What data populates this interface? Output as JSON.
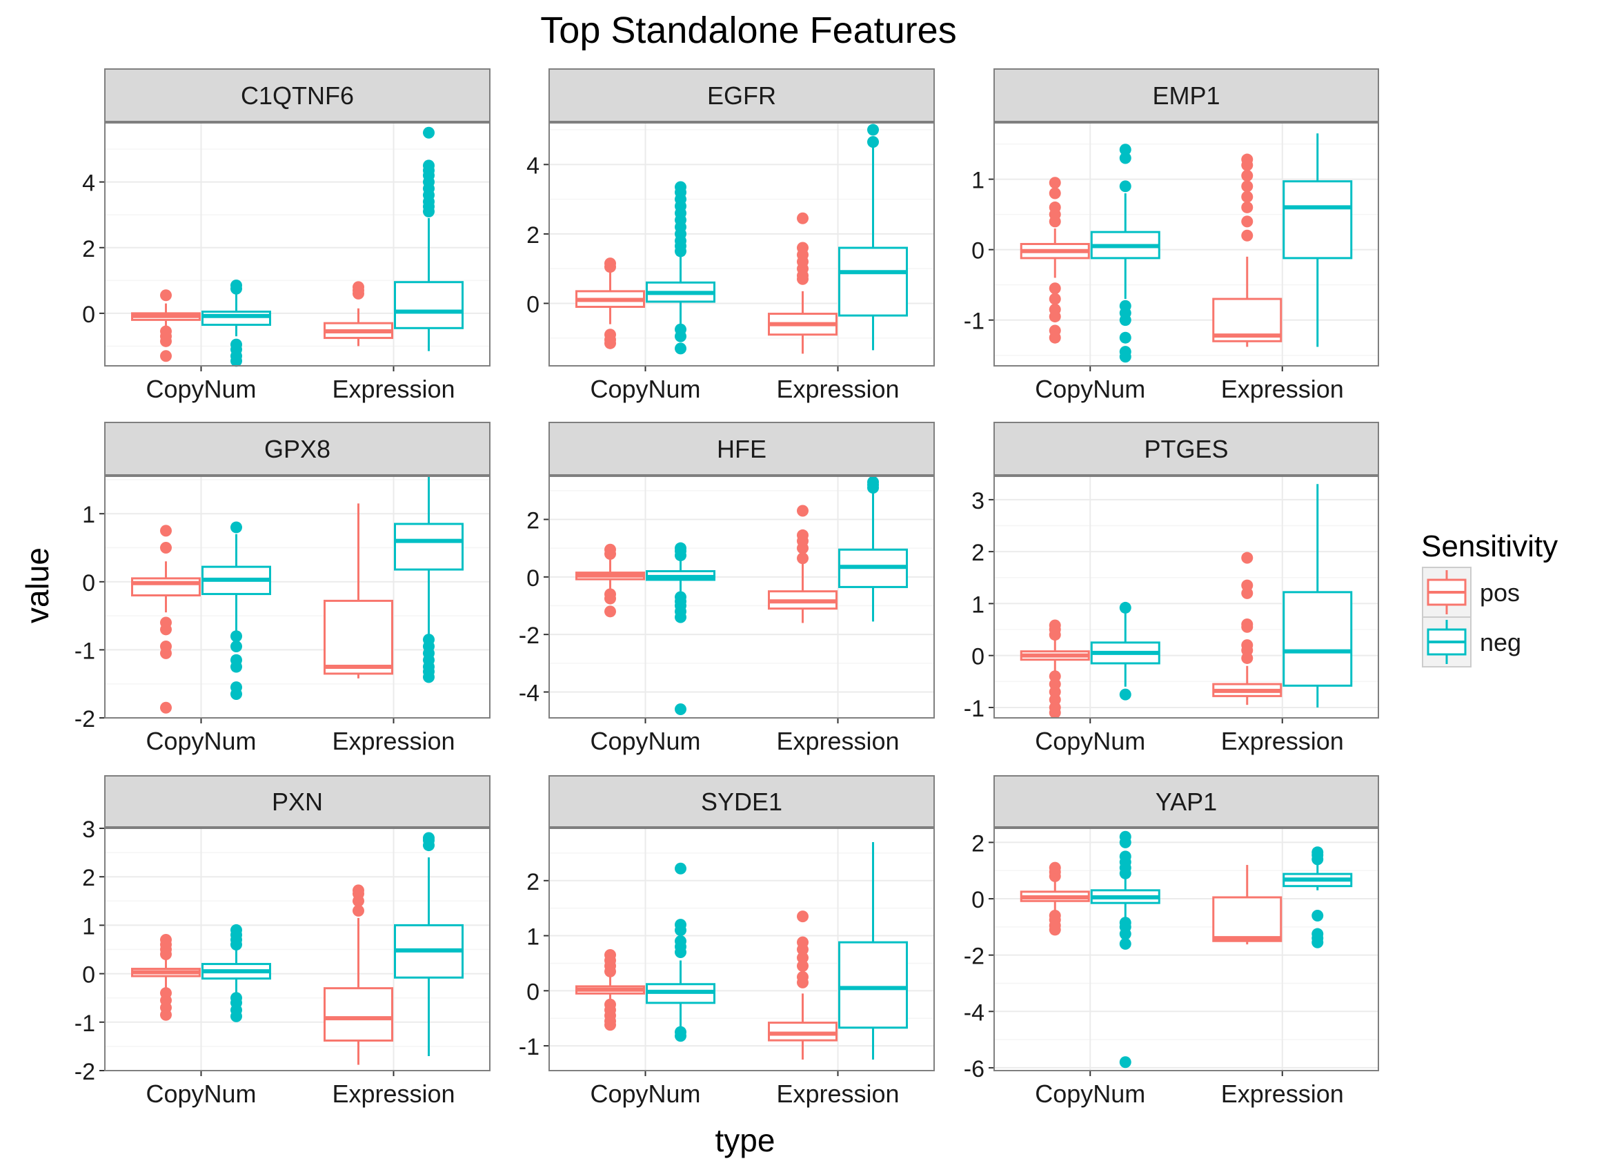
{
  "title": "Top Standalone Features",
  "xlabel": "type",
  "ylabel": "value",
  "colors": {
    "pos": "#F8766D",
    "neg": "#00BFC4",
    "strip_bg": "#D9D9D9",
    "grid_major": "#EBEBEB",
    "grid_minor": "#F5F5F5",
    "border": "#7F7F7F"
  },
  "legend": {
    "title": "Sensitivity",
    "placement": "right",
    "items": [
      {
        "key": "pos",
        "label": "pos"
      },
      {
        "key": "neg",
        "label": "neg"
      }
    ]
  },
  "chart_data": {
    "type": "boxplot",
    "facets_layout": "3x3",
    "categories": [
      "CopyNum",
      "Expression"
    ],
    "groups": [
      "pos",
      "neg"
    ],
    "panels": [
      {
        "name": "C1QTNF6",
        "ylim": [
          -1.6,
          5.8
        ],
        "yticks": [
          0,
          2,
          4
        ],
        "boxes": [
          {
            "category": "CopyNum",
            "group": "pos",
            "q1": -0.2,
            "median": -0.08,
            "q3": 0.0,
            "whisker_low": -0.45,
            "whisker_high": 0.3,
            "outliers": [
              0.55,
              -0.55,
              -0.7,
              -0.85,
              -1.3
            ]
          },
          {
            "category": "CopyNum",
            "group": "neg",
            "q1": -0.35,
            "median": -0.08,
            "q3": 0.05,
            "whisker_low": -0.7,
            "whisker_high": 0.6,
            "outliers": [
              0.75,
              0.85,
              -0.95,
              -1.1,
              -1.3,
              -1.45
            ]
          },
          {
            "category": "Expression",
            "group": "pos",
            "q1": -0.75,
            "median": -0.55,
            "q3": -0.3,
            "whisker_low": -1.0,
            "whisker_high": 0.15,
            "outliers": [
              0.6,
              0.7,
              0.8
            ]
          },
          {
            "category": "Expression",
            "group": "neg",
            "q1": -0.45,
            "median": 0.05,
            "q3": 0.95,
            "whisker_low": -1.15,
            "whisker_high": 2.9,
            "outliers": [
              3.1,
              3.25,
              3.4,
              3.6,
              3.8,
              4.0,
              4.2,
              4.35,
              4.5,
              5.5
            ]
          }
        ]
      },
      {
        "name": "EGFR",
        "ylim": [
          -1.8,
          5.2
        ],
        "yticks": [
          0,
          2,
          4
        ],
        "boxes": [
          {
            "category": "CopyNum",
            "group": "pos",
            "q1": -0.1,
            "median": 0.1,
            "q3": 0.35,
            "whisker_low": -0.6,
            "whisker_high": 0.9,
            "outliers": [
              1.05,
              1.15,
              -0.9,
              -1.05,
              -1.15
            ]
          },
          {
            "category": "CopyNum",
            "group": "neg",
            "q1": 0.05,
            "median": 0.3,
            "q3": 0.6,
            "whisker_low": -0.6,
            "whisker_high": 1.35,
            "outliers": [
              1.5,
              1.65,
              1.8,
              2.0,
              2.2,
              2.4,
              2.6,
              2.8,
              3.0,
              3.2,
              3.35,
              -0.75,
              -0.95,
              -1.3
            ]
          },
          {
            "category": "Expression",
            "group": "pos",
            "q1": -0.9,
            "median": -0.6,
            "q3": -0.3,
            "whisker_low": -1.45,
            "whisker_high": 0.35,
            "outliers": [
              0.7,
              0.8,
              1.0,
              1.2,
              1.4,
              1.6,
              2.45
            ]
          },
          {
            "category": "Expression",
            "group": "neg",
            "q1": -0.35,
            "median": 0.9,
            "q3": 1.6,
            "whisker_low": -1.35,
            "whisker_high": 4.55,
            "outliers": [
              4.65,
              5.0
            ]
          }
        ]
      },
      {
        "name": "EMP1",
        "ylim": [
          -1.65,
          1.8
        ],
        "yticks": [
          -1,
          0,
          1
        ],
        "boxes": [
          {
            "category": "CopyNum",
            "group": "pos",
            "q1": -0.12,
            "median": -0.02,
            "q3": 0.08,
            "whisker_low": -0.4,
            "whisker_high": 0.3,
            "outliers": [
              0.4,
              0.5,
              0.6,
              0.8,
              0.95,
              -0.55,
              -0.7,
              -0.85,
              -0.95,
              -1.15,
              -1.25
            ]
          },
          {
            "category": "CopyNum",
            "group": "neg",
            "q1": -0.12,
            "median": 0.05,
            "q3": 0.25,
            "whisker_low": -0.7,
            "whisker_high": 0.8,
            "outliers": [
              0.9,
              1.3,
              1.42,
              -0.8,
              -0.9,
              -1.0,
              -1.25,
              -1.45,
              -1.52
            ]
          },
          {
            "category": "Expression",
            "group": "pos",
            "q1": -1.3,
            "median": -1.22,
            "q3": -0.7,
            "whisker_low": -1.38,
            "whisker_high": -0.1,
            "outliers": [
              0.2,
              0.4,
              0.6,
              0.75,
              0.9,
              1.05,
              1.2,
              1.28
            ]
          },
          {
            "category": "Expression",
            "group": "neg",
            "q1": -0.12,
            "median": 0.6,
            "q3": 0.97,
            "whisker_low": -1.38,
            "whisker_high": 1.65,
            "outliers": []
          }
        ]
      },
      {
        "name": "GPX8",
        "ylim": [
          -2.0,
          1.55
        ],
        "yticks": [
          -2,
          -1,
          0,
          1
        ],
        "boxes": [
          {
            "category": "CopyNum",
            "group": "pos",
            "q1": -0.2,
            "median": -0.02,
            "q3": 0.05,
            "whisker_low": -0.45,
            "whisker_high": 0.3,
            "outliers": [
              0.5,
              0.75,
              -0.6,
              -0.7,
              -0.95,
              -1.05,
              -1.85
            ]
          },
          {
            "category": "CopyNum",
            "group": "neg",
            "q1": -0.18,
            "median": 0.03,
            "q3": 0.22,
            "whisker_low": -0.75,
            "whisker_high": 0.7,
            "outliers": [
              0.8,
              -0.8,
              -0.95,
              -1.15,
              -1.25,
              -1.55,
              -1.65
            ]
          },
          {
            "category": "Expression",
            "group": "pos",
            "q1": -1.35,
            "median": -1.25,
            "q3": -0.28,
            "whisker_low": -1.42,
            "whisker_high": 1.15,
            "outliers": []
          },
          {
            "category": "Expression",
            "group": "neg",
            "q1": 0.18,
            "median": 0.6,
            "q3": 0.85,
            "whisker_low": -0.8,
            "whisker_high": 1.55,
            "outliers": [
              -0.85,
              -0.95,
              -1.05,
              -1.15,
              -1.25,
              -1.32,
              -1.4
            ]
          }
        ]
      },
      {
        "name": "HFE",
        "ylim": [
          -4.9,
          3.5
        ],
        "yticks": [
          -4,
          -2,
          0,
          2
        ],
        "boxes": [
          {
            "category": "CopyNum",
            "group": "pos",
            "q1": -0.08,
            "median": 0.05,
            "q3": 0.15,
            "whisker_low": -0.5,
            "whisker_high": 0.6,
            "outliers": [
              0.8,
              0.95,
              -0.6,
              -0.75,
              -1.2
            ]
          },
          {
            "category": "CopyNum",
            "group": "neg",
            "q1": -0.1,
            "median": 0.0,
            "q3": 0.2,
            "whisker_low": -0.5,
            "whisker_high": 0.6,
            "outliers": [
              0.75,
              0.9,
              1.0,
              -0.7,
              -0.85,
              -1.0,
              -1.2,
              -1.4,
              -4.6
            ]
          },
          {
            "category": "Expression",
            "group": "pos",
            "q1": -1.1,
            "median": -0.85,
            "q3": -0.5,
            "whisker_low": -1.6,
            "whisker_high": 0.5,
            "outliers": [
              0.65,
              1.0,
              1.25,
              1.45,
              2.3
            ]
          },
          {
            "category": "Expression",
            "group": "neg",
            "q1": -0.35,
            "median": 0.35,
            "q3": 0.95,
            "whisker_low": -1.55,
            "whisker_high": 2.95,
            "outliers": [
              3.1,
              3.2,
              3.3
            ]
          }
        ]
      },
      {
        "name": "PTGES",
        "ylim": [
          -1.2,
          3.45
        ],
        "yticks": [
          -1,
          0,
          1,
          2,
          3
        ],
        "boxes": [
          {
            "category": "CopyNum",
            "group": "pos",
            "q1": -0.08,
            "median": 0.0,
            "q3": 0.08,
            "whisker_low": -0.3,
            "whisker_high": 0.3,
            "outliers": [
              0.4,
              0.5,
              0.58,
              -0.4,
              -0.55,
              -0.7,
              -0.85,
              -1.0,
              -1.1
            ]
          },
          {
            "category": "CopyNum",
            "group": "neg",
            "q1": -0.15,
            "median": 0.05,
            "q3": 0.25,
            "whisker_low": -0.6,
            "whisker_high": 0.9,
            "outliers": [
              0.92,
              -0.75
            ]
          },
          {
            "category": "Expression",
            "group": "pos",
            "q1": -0.78,
            "median": -0.68,
            "q3": -0.55,
            "whisker_low": -0.95,
            "whisker_high": -0.2,
            "outliers": [
              -0.05,
              0.1,
              0.2,
              0.55,
              0.6,
              1.2,
              1.35,
              1.88
            ]
          },
          {
            "category": "Expression",
            "group": "neg",
            "q1": -0.58,
            "median": 0.08,
            "q3": 1.22,
            "whisker_low": -1.0,
            "whisker_high": 3.3,
            "outliers": []
          }
        ]
      },
      {
        "name": "PXN",
        "ylim": [
          -2.0,
          3.0
        ],
        "yticks": [
          -2,
          -1,
          0,
          1,
          2,
          3
        ],
        "boxes": [
          {
            "category": "CopyNum",
            "group": "pos",
            "q1": -0.05,
            "median": 0.03,
            "q3": 0.1,
            "whisker_low": -0.3,
            "whisker_high": 0.3,
            "outliers": [
              0.4,
              0.5,
              0.6,
              0.7,
              -0.4,
              -0.55,
              -0.7,
              -0.85
            ]
          },
          {
            "category": "CopyNum",
            "group": "neg",
            "q1": -0.1,
            "median": 0.05,
            "q3": 0.2,
            "whisker_low": -0.4,
            "whisker_high": 0.55,
            "outliers": [
              0.6,
              0.7,
              0.8,
              0.9,
              -0.5,
              -0.6,
              -0.75,
              -0.88
            ]
          },
          {
            "category": "Expression",
            "group": "pos",
            "q1": -1.38,
            "median": -0.92,
            "q3": -0.3,
            "whisker_low": -1.88,
            "whisker_high": 1.15,
            "outliers": [
              1.3,
              1.5,
              1.65,
              1.72
            ]
          },
          {
            "category": "Expression",
            "group": "neg",
            "q1": -0.08,
            "median": 0.48,
            "q3": 1.0,
            "whisker_low": -1.7,
            "whisker_high": 2.4,
            "outliers": [
              2.65,
              2.75,
              2.8
            ]
          }
        ]
      },
      {
        "name": "SYDE1",
        "ylim": [
          -1.45,
          2.95
        ],
        "yticks": [
          -1,
          0,
          1,
          2
        ],
        "boxes": [
          {
            "category": "CopyNum",
            "group": "pos",
            "q1": -0.05,
            "median": 0.02,
            "q3": 0.08,
            "whisker_low": -0.2,
            "whisker_high": 0.25,
            "outliers": [
              0.35,
              0.45,
              0.55,
              0.65,
              -0.25,
              -0.35,
              -0.45,
              -0.55,
              -0.62
            ]
          },
          {
            "category": "CopyNum",
            "group": "neg",
            "q1": -0.22,
            "median": -0.02,
            "q3": 0.12,
            "whisker_low": -0.65,
            "whisker_high": 0.55,
            "outliers": [
              0.7,
              0.8,
              0.9,
              1.1,
              1.2,
              2.22,
              -0.75,
              -0.82
            ]
          },
          {
            "category": "Expression",
            "group": "pos",
            "q1": -0.9,
            "median": -0.78,
            "q3": -0.58,
            "whisker_low": -1.25,
            "whisker_high": -0.05,
            "outliers": [
              0.15,
              0.25,
              0.45,
              0.6,
              0.75,
              0.88,
              1.35
            ]
          },
          {
            "category": "Expression",
            "group": "neg",
            "q1": -0.67,
            "median": 0.05,
            "q3": 0.88,
            "whisker_low": -1.25,
            "whisker_high": 2.7,
            "outliers": []
          }
        ]
      },
      {
        "name": "YAP1",
        "ylim": [
          -6.1,
          2.5
        ],
        "yticks": [
          -6,
          -4,
          -2,
          0,
          2
        ],
        "boxes": [
          {
            "category": "CopyNum",
            "group": "pos",
            "q1": -0.08,
            "median": 0.05,
            "q3": 0.25,
            "whisker_low": -0.45,
            "whisker_high": 0.65,
            "outliers": [
              0.8,
              0.95,
              1.1,
              -0.6,
              -0.75,
              -0.95,
              -1.1
            ]
          },
          {
            "category": "CopyNum",
            "group": "neg",
            "q1": -0.15,
            "median": 0.05,
            "q3": 0.3,
            "whisker_low": -0.7,
            "whisker_high": 0.75,
            "outliers": [
              0.9,
              1.1,
              1.3,
              1.5,
              2.0,
              2.2,
              -0.85,
              -1.0,
              -1.25,
              -1.6,
              -5.8
            ]
          },
          {
            "category": "Expression",
            "group": "pos",
            "q1": -1.5,
            "median": -1.4,
            "q3": 0.05,
            "whisker_low": -1.62,
            "whisker_high": 1.2,
            "outliers": []
          },
          {
            "category": "Expression",
            "group": "neg",
            "q1": 0.45,
            "median": 0.68,
            "q3": 0.88,
            "whisker_low": 0.3,
            "whisker_high": 1.25,
            "outliers": [
              1.4,
              1.55,
              1.65,
              -0.6,
              -1.25,
              -1.4,
              -1.55
            ]
          }
        ]
      }
    ]
  }
}
